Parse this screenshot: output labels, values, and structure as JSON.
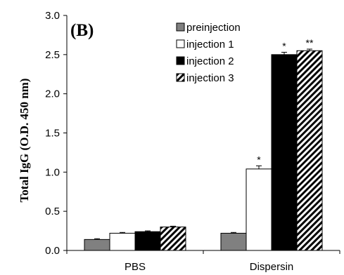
{
  "chart_data": {
    "type": "bar",
    "panel_label": "(B)",
    "ylabel": "Total IgG (O.D. 450 nm)",
    "xlabel": "",
    "ylim": [
      0,
      3.0
    ],
    "yticks": [
      "0.0",
      "0.5",
      "1.0",
      "1.5",
      "2.0",
      "2.5",
      "3.0"
    ],
    "categories": [
      "PBS",
      "Dispersin"
    ],
    "legend_position": "top-right",
    "series": [
      {
        "name": "preinjection",
        "values": [
          0.14,
          0.22
        ],
        "errors": [
          0.01,
          0.01
        ],
        "fill": "#808080",
        "pattern": "solid",
        "annotations": [
          "",
          ""
        ]
      },
      {
        "name": "injection 1",
        "values": [
          0.22,
          1.04
        ],
        "errors": [
          0.01,
          0.04
        ],
        "fill": "#ffffff",
        "pattern": "solid",
        "annotations": [
          "",
          "*"
        ]
      },
      {
        "name": "injection 2",
        "values": [
          0.24,
          2.5
        ],
        "errors": [
          0.01,
          0.03
        ],
        "fill": "#000000",
        "pattern": "solid",
        "annotations": [
          "",
          "*"
        ]
      },
      {
        "name": "injection 3",
        "values": [
          0.3,
          2.55
        ],
        "errors": [
          0.01,
          0.02
        ],
        "fill": "#ffffff",
        "pattern": "hatch",
        "annotations": [
          "",
          "**"
        ]
      }
    ]
  }
}
